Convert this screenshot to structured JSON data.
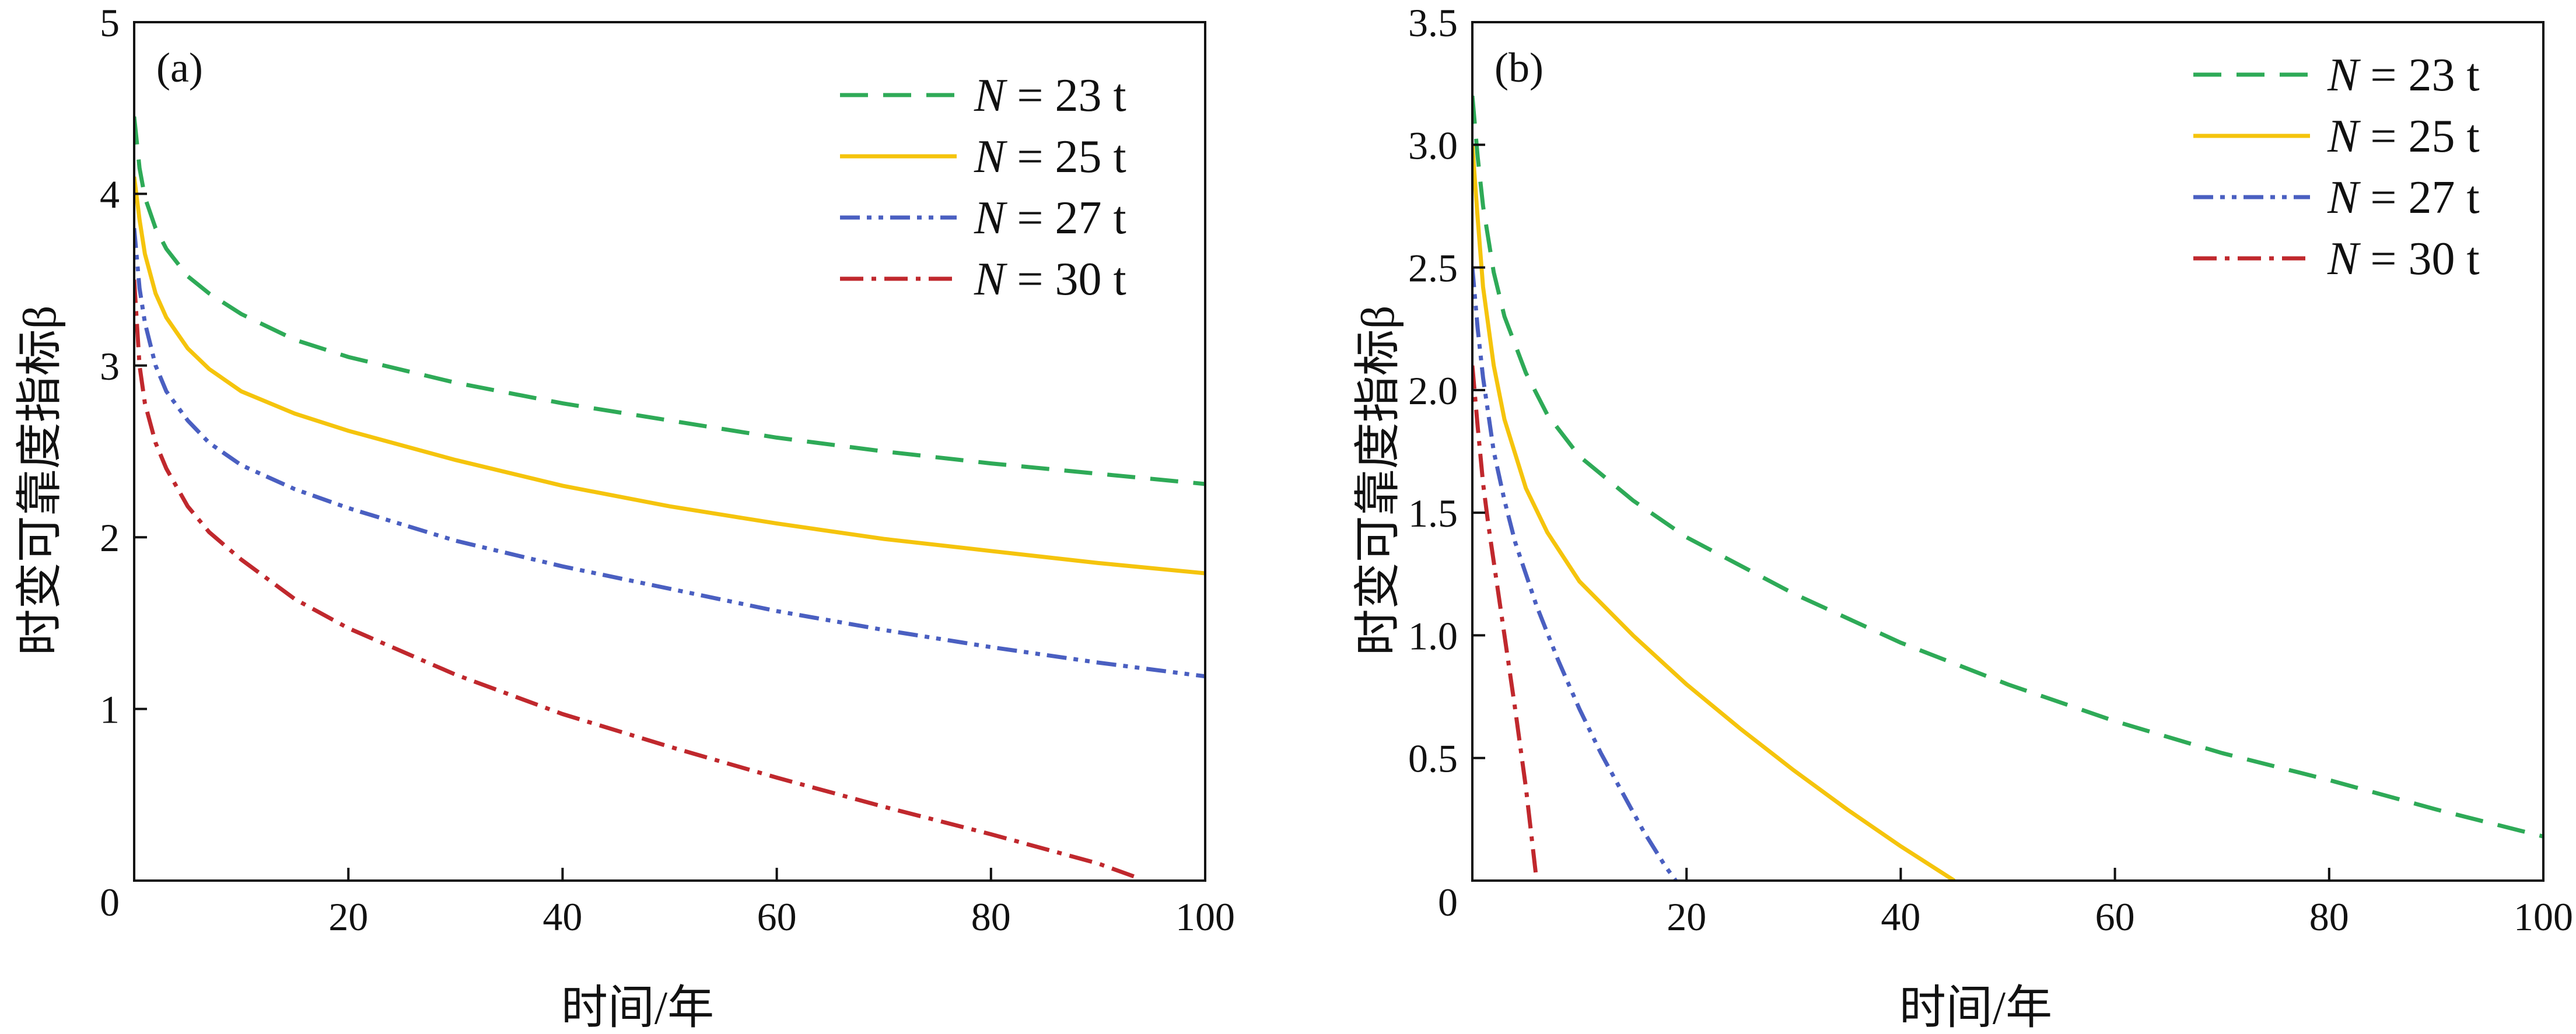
{
  "chart_data": [
    {
      "type": "line",
      "panel_label": "(a)",
      "xlabel": "时间/年",
      "ylabel": "时变可靠度指标β",
      "xlim": [
        0,
        100
      ],
      "ylim": [
        0,
        5
      ],
      "xticks": [
        "20",
        "40",
        "60",
        "80",
        "100"
      ],
      "yticks": [
        "0",
        "1",
        "2",
        "3",
        "4",
        "5"
      ],
      "grid": false,
      "legend_position": "top-right",
      "series": [
        {
          "name": "N = 23 t",
          "italic": "N",
          "rest": " = 23 t",
          "color": "#2eaa57",
          "dash": "dash",
          "x": [
            0,
            0.5,
            1,
            2,
            3,
            5,
            7,
            10,
            15,
            20,
            30,
            40,
            50,
            60,
            70,
            80,
            90,
            100
          ],
          "y": [
            4.45,
            4.15,
            3.98,
            3.8,
            3.68,
            3.52,
            3.42,
            3.3,
            3.15,
            3.05,
            2.9,
            2.78,
            2.68,
            2.58,
            2.5,
            2.43,
            2.37,
            2.31
          ]
        },
        {
          "name": "N = 25 t",
          "italic": "N",
          "rest": " = 25 t",
          "color": "#f5c40c",
          "dash": "solid",
          "x": [
            0,
            0.5,
            1,
            2,
            3,
            5,
            7,
            10,
            15,
            20,
            30,
            40,
            50,
            60,
            70,
            80,
            90,
            100
          ],
          "y": [
            4.1,
            3.85,
            3.65,
            3.42,
            3.28,
            3.1,
            2.98,
            2.85,
            2.72,
            2.62,
            2.45,
            2.3,
            2.18,
            2.08,
            1.99,
            1.92,
            1.85,
            1.79
          ]
        },
        {
          "name": "N = 27 t",
          "italic": "N",
          "rest": " = 27 t",
          "color": "#4a5fc1",
          "dash": "dashdotdot",
          "x": [
            0,
            0.5,
            1,
            2,
            3,
            5,
            7,
            10,
            15,
            20,
            30,
            40,
            50,
            60,
            70,
            80,
            90,
            100
          ],
          "y": [
            3.8,
            3.45,
            3.25,
            3.0,
            2.85,
            2.68,
            2.55,
            2.42,
            2.28,
            2.17,
            1.98,
            1.83,
            1.7,
            1.57,
            1.46,
            1.36,
            1.27,
            1.19
          ]
        },
        {
          "name": "N = 30 t",
          "italic": "N",
          "rest": " = 30 t",
          "color": "#c0282d",
          "dash": "dashdot",
          "x": [
            0,
            0.5,
            1,
            2,
            3,
            5,
            7,
            10,
            15,
            20,
            30,
            40,
            50,
            60,
            70,
            80,
            90,
            94
          ],
          "y": [
            3.5,
            3.0,
            2.78,
            2.55,
            2.4,
            2.18,
            2.03,
            1.87,
            1.64,
            1.47,
            1.2,
            0.97,
            0.78,
            0.6,
            0.43,
            0.27,
            0.1,
            0.01
          ]
        }
      ]
    },
    {
      "type": "line",
      "panel_label": "(b)",
      "xlabel": "时间/年",
      "ylabel": "时变可靠度指标β",
      "xlim": [
        0,
        100
      ],
      "ylim": [
        0,
        3.5
      ],
      "xticks": [
        "20",
        "40",
        "60",
        "80",
        "100"
      ],
      "yticks": [
        "0",
        "0.5",
        "1.0",
        "1.5",
        "2.0",
        "2.5",
        "3.0",
        "3.5"
      ],
      "grid": false,
      "legend_position": "top-right",
      "series": [
        {
          "name": "N = 23 t",
          "italic": "N",
          "rest": " = 23 t",
          "color": "#2eaa57",
          "dash": "dash",
          "x": [
            0,
            0.5,
            1,
            2,
            3,
            5,
            7,
            10,
            15,
            20,
            30,
            40,
            50,
            60,
            70,
            80,
            90,
            100
          ],
          "y": [
            3.2,
            2.95,
            2.75,
            2.48,
            2.3,
            2.07,
            1.9,
            1.73,
            1.55,
            1.4,
            1.17,
            0.97,
            0.8,
            0.65,
            0.52,
            0.41,
            0.29,
            0.18
          ]
        },
        {
          "name": "N = 25 t",
          "italic": "N",
          "rest": " = 25 t",
          "color": "#f5c40c",
          "dash": "solid",
          "x": [
            0,
            0.5,
            1,
            2,
            3,
            5,
            7,
            10,
            15,
            20,
            25,
            30,
            35,
            40,
            45
          ],
          "y": [
            3.0,
            2.7,
            2.42,
            2.1,
            1.88,
            1.6,
            1.42,
            1.22,
            1.0,
            0.8,
            0.62,
            0.45,
            0.29,
            0.14,
            0.0
          ]
        },
        {
          "name": "N = 27 t",
          "italic": "N",
          "rest": " = 27 t",
          "color": "#4a5fc1",
          "dash": "dashdotdot",
          "x": [
            0,
            0.5,
            1,
            2,
            3,
            4,
            6,
            8,
            10,
            12,
            14,
            16,
            18,
            19
          ],
          "y": [
            2.5,
            2.25,
            2.05,
            1.75,
            1.55,
            1.38,
            1.12,
            0.9,
            0.7,
            0.52,
            0.36,
            0.2,
            0.06,
            0.0
          ]
        },
        {
          "name": "N = 30 t",
          "italic": "N",
          "rest": " = 30 t",
          "color": "#c0282d",
          "dash": "dashdot",
          "x": [
            0,
            0.5,
            1,
            1.5,
            2,
            3,
            4,
            5,
            6
          ],
          "y": [
            2.1,
            1.85,
            1.62,
            1.45,
            1.3,
            1.0,
            0.7,
            0.38,
            0.0
          ]
        }
      ]
    }
  ]
}
